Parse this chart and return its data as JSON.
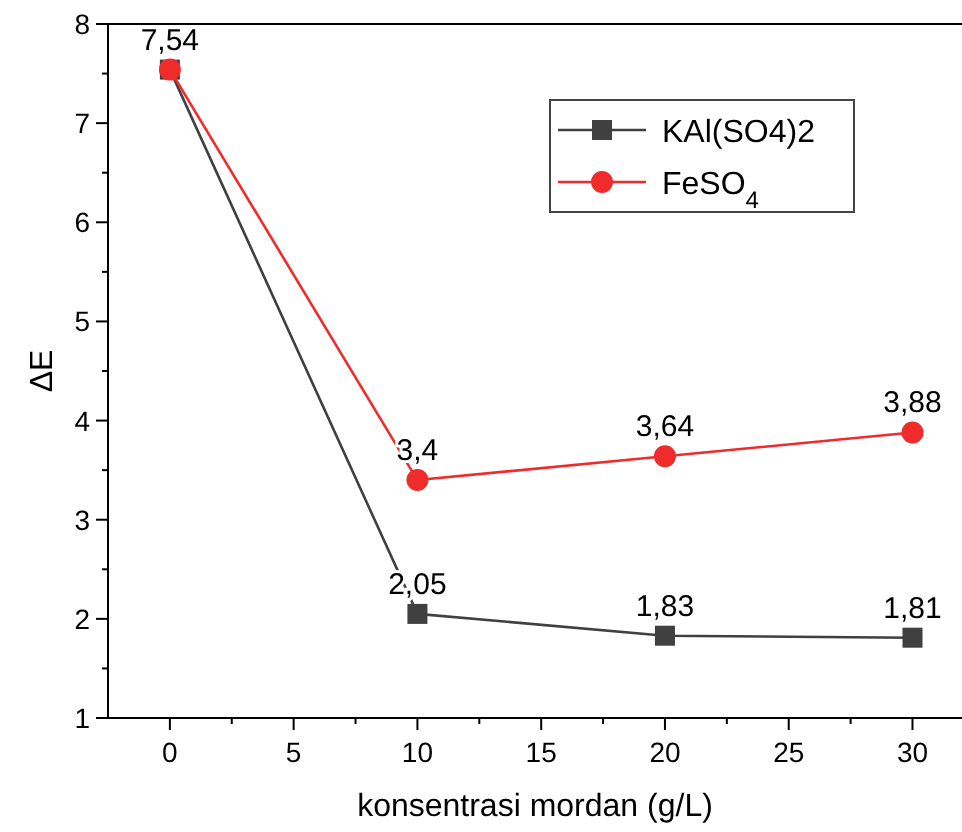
{
  "chart_data": {
    "type": "line",
    "xlabel": "konsentrasi mordan (g/L)",
    "ylabel": "ΔE",
    "x": [
      0,
      10,
      20,
      30
    ],
    "series": [
      {
        "name": "KAl(SO4)2",
        "color": "#404040",
        "marker": "square",
        "values": [
          7.54,
          2.05,
          1.83,
          1.81
        ],
        "value_labels": [
          null,
          "2,05",
          "1,83",
          "1,81"
        ]
      },
      {
        "name": "FeSO$_{4}$",
        "color": "#ef2b2b",
        "marker": "circle",
        "values": [
          7.54,
          3.4,
          3.64,
          3.88
        ],
        "value_labels": [
          "7,54",
          "3,4",
          "3,64",
          "3,88"
        ]
      }
    ],
    "xlim": [
      -2.5,
      32
    ],
    "xticks": [
      0,
      {
        "value": 2.5,
        "label": null
      },
      5,
      {
        "value": 7.5,
        "label": null
      },
      10,
      {
        "value": 12.5,
        "label": null
      },
      15,
      {
        "value": 17.5,
        "label": null
      },
      20,
      {
        "value": 22.5,
        "label": null
      },
      25,
      {
        "value": 27.5,
        "label": null
      },
      30
    ],
    "ylim": [
      1,
      8
    ],
    "yticks": [
      1,
      {
        "value": 1.5,
        "label": null
      },
      2,
      {
        "value": 2.5,
        "label": null
      },
      3,
      {
        "value": 3.5,
        "label": null
      },
      4,
      {
        "value": 4.5,
        "label": null
      },
      5,
      {
        "value": 5.5,
        "label": null
      },
      6,
      {
        "value": 6.5,
        "label": null
      },
      7,
      {
        "value": 7.5,
        "label": null
      },
      8
    ],
    "grid": false,
    "legend": "top right",
    "line_style": "solid"
  }
}
